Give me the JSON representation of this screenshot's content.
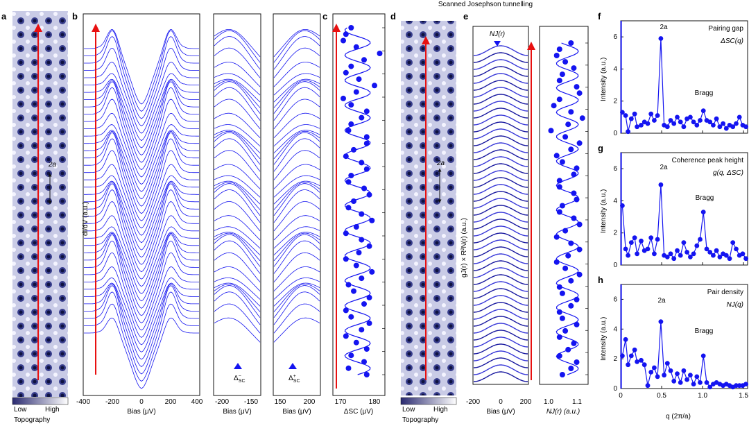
{
  "figure": {
    "header": "Scanned Josephson tunnelling",
    "panel_letters": [
      "a",
      "b",
      "c",
      "d",
      "e",
      "f",
      "g",
      "h"
    ],
    "topography": {
      "low": "Low",
      "high": "High",
      "label": "Topography",
      "scale_mark": "2a",
      "cmap": [
        "#2a2a70",
        "#ffffff"
      ]
    },
    "series_color": "#1414f0",
    "arrow_color": "#e81010"
  },
  "chart_data": [
    {
      "panel": "b",
      "type": "line",
      "ylabel": "dI/dV (a.u.)",
      "xlabel": "Bias (μV)",
      "xlim": [
        -400,
        400
      ],
      "xticks": [
        "-400",
        "-200",
        "0",
        "200",
        "400"
      ],
      "n_curves": 40
    },
    {
      "panel": "b-gap-negative",
      "type": "line",
      "xlabel": "Bias (μV)",
      "xlim": [
        -240,
        -130
      ],
      "xticks": [
        "-200",
        "-150"
      ],
      "marker_label": "Δ",
      "marker_sup": "−",
      "marker_sub": "SC"
    },
    {
      "panel": "b-gap-positive",
      "type": "line",
      "xlabel": "Bias (μV)",
      "xlim": [
        130,
        240
      ],
      "xticks": [
        "150",
        "200"
      ],
      "marker_label": "Δ",
      "marker_sup": "+",
      "marker_sub": "SC"
    },
    {
      "panel": "c",
      "type": "scatter",
      "xlabel": "ΔSC (μV)",
      "xlim": [
        165,
        185
      ],
      "xticks": [
        "170",
        "180"
      ],
      "values": [
        178,
        171,
        177,
        172,
        178,
        174,
        170,
        176,
        179,
        172,
        170,
        177,
        179,
        173,
        171,
        176,
        180,
        174,
        170,
        175,
        179,
        176,
        170,
        174,
        180,
        176,
        171,
        173,
        179,
        177,
        171,
        172,
        178,
        176,
        170,
        173,
        178,
        178,
        171,
        172,
        176,
        178,
        172,
        169,
        174,
        181,
        175,
        170,
        172,
        177,
        183,
        174,
        169,
        170,
        172
      ]
    },
    {
      "panel": "e",
      "type": "line",
      "ylabel": "gJ(r) × R²N(r) (a.u.)",
      "xlabel": "Bias (μV)",
      "xlim": [
        -200,
        200
      ],
      "xticks": [
        "-200",
        "0",
        "200"
      ],
      "top_label": "NJ(r)",
      "n_curves": 48
    },
    {
      "panel": "e-right",
      "type": "scatter",
      "xlabel": "NJ(r) (a.u.)",
      "xlim": [
        0.95,
        1.12
      ],
      "xticks": [
        "1.0",
        "1.1"
      ],
      "values": [
        1.03,
        1.06,
        1.08,
        1.02,
        1.05,
        1.07,
        1.02,
        1.04,
        1.08,
        1.03,
        1.02,
        1.06,
        1.08,
        1.03,
        1.02,
        1.06,
        1.09,
        1.04,
        1.01,
        1.05,
        1.09,
        1.06,
        1.01,
        1.04,
        1.09,
        1.07,
        1.02,
        1.03,
        1.08,
        1.07,
        1.02,
        1.02,
        1.07,
        1.08,
        1.03,
        1.01,
        1.06,
        1.09,
        1.04,
        0.99,
        1.05,
        1.1,
        1.06,
        1.0,
        1.02,
        1.09,
        1.08,
        1.02,
        1.03,
        1.07,
        1.04,
        1.01,
        1.02,
        1.06
      ]
    },
    {
      "panel": "f",
      "type": "line",
      "ylabel": "Intensity (a.u.)",
      "title": "Pairing gap",
      "subtitle": "ΔSC(q)",
      "xlim": [
        0,
        1.55
      ],
      "ylim": [
        0,
        7
      ],
      "yticks": [
        "0",
        "2",
        "4",
        "6"
      ],
      "x": [
        0.02,
        0.06,
        0.09,
        0.13,
        0.17,
        0.2,
        0.25,
        0.29,
        0.33,
        0.37,
        0.41,
        0.45,
        0.49,
        0.53,
        0.57,
        0.61,
        0.65,
        0.69,
        0.73,
        0.77,
        0.81,
        0.85,
        0.89,
        0.93,
        0.97,
        1.01,
        1.05,
        1.09,
        1.13,
        1.17,
        1.21,
        1.25,
        1.29,
        1.33,
        1.37,
        1.41,
        1.45,
        1.49,
        1.53
      ],
      "y": [
        1.3,
        1.1,
        0.1,
        0.9,
        1.2,
        0.4,
        0.5,
        0.7,
        0.6,
        1.2,
        0.8,
        1.1,
        5.9,
        0.5,
        0.4,
        0.8,
        0.6,
        1.0,
        0.7,
        0.4,
        0.9,
        1.0,
        0.7,
        0.5,
        0.8,
        1.4,
        0.8,
        0.7,
        0.5,
        0.9,
        0.4,
        0.6,
        0.3,
        0.5,
        0.4,
        0.6,
        1.0,
        0.5,
        0.4
      ],
      "annotations": [
        "2a",
        "Bragg"
      ]
    },
    {
      "panel": "g",
      "type": "line",
      "ylabel": "Intensity (a.u.)",
      "title": "Coherence peak height",
      "subtitle": "g(q, ΔSC)",
      "xlim": [
        0,
        1.55
      ],
      "ylim": [
        0,
        7
      ],
      "yticks": [
        "0",
        "2",
        "4",
        "6"
      ],
      "x": [
        0.02,
        0.06,
        0.09,
        0.13,
        0.17,
        0.2,
        0.25,
        0.29,
        0.33,
        0.37,
        0.41,
        0.45,
        0.49,
        0.53,
        0.57,
        0.61,
        0.65,
        0.69,
        0.73,
        0.77,
        0.81,
        0.85,
        0.89,
        0.93,
        0.97,
        1.01,
        1.05,
        1.09,
        1.13,
        1.17,
        1.21,
        1.25,
        1.29,
        1.33,
        1.37,
        1.41,
        1.45,
        1.49,
        1.53
      ],
      "y": [
        3.7,
        1.0,
        0.6,
        1.4,
        1.7,
        0.7,
        1.5,
        0.9,
        1.0,
        1.7,
        0.7,
        1.6,
        5.0,
        0.6,
        0.5,
        0.7,
        0.4,
        0.9,
        0.6,
        1.4,
        0.8,
        0.5,
        0.7,
        1.2,
        1.6,
        3.3,
        1.0,
        0.8,
        0.6,
        0.9,
        0.5,
        0.7,
        0.6,
        0.4,
        1.4,
        1.0,
        0.6,
        0.7,
        0.4
      ],
      "annotations": [
        "2a",
        "Bragg"
      ]
    },
    {
      "panel": "h",
      "type": "line",
      "ylabel": "Intensity (a.u.)",
      "xlabel": "q (2π/a)",
      "title": "Pair density",
      "subtitle": "NJ(q)",
      "xlim": [
        0,
        1.55
      ],
      "ylim": [
        0,
        7
      ],
      "yticks": [
        "0",
        "2",
        "4",
        "6"
      ],
      "xticks": [
        "0",
        "0.5",
        "1.0",
        "1.5"
      ],
      "x": [
        0.02,
        0.06,
        0.09,
        0.13,
        0.17,
        0.2,
        0.25,
        0.29,
        0.33,
        0.37,
        0.41,
        0.45,
        0.49,
        0.53,
        0.57,
        0.61,
        0.65,
        0.69,
        0.73,
        0.77,
        0.81,
        0.85,
        0.89,
        0.93,
        0.97,
        1.01,
        1.05,
        1.09,
        1.13,
        1.17,
        1.21,
        1.25,
        1.29,
        1.33,
        1.37,
        1.41,
        1.45,
        1.49,
        1.53
      ],
      "y": [
        2.2,
        3.3,
        1.6,
        2.2,
        2.6,
        1.8,
        1.9,
        1.6,
        0.2,
        1.1,
        1.4,
        0.8,
        4.5,
        0.9,
        1.7,
        1.2,
        0.5,
        1.0,
        0.4,
        1.2,
        0.6,
        0.9,
        0.3,
        0.8,
        0.4,
        2.2,
        0.4,
        0.1,
        0.3,
        0.4,
        0.3,
        0.2,
        0.3,
        0.2,
        0.1,
        0.2,
        0.2,
        0.2,
        0.3
      ],
      "annotations": [
        "2a",
        "Bragg"
      ]
    }
  ]
}
